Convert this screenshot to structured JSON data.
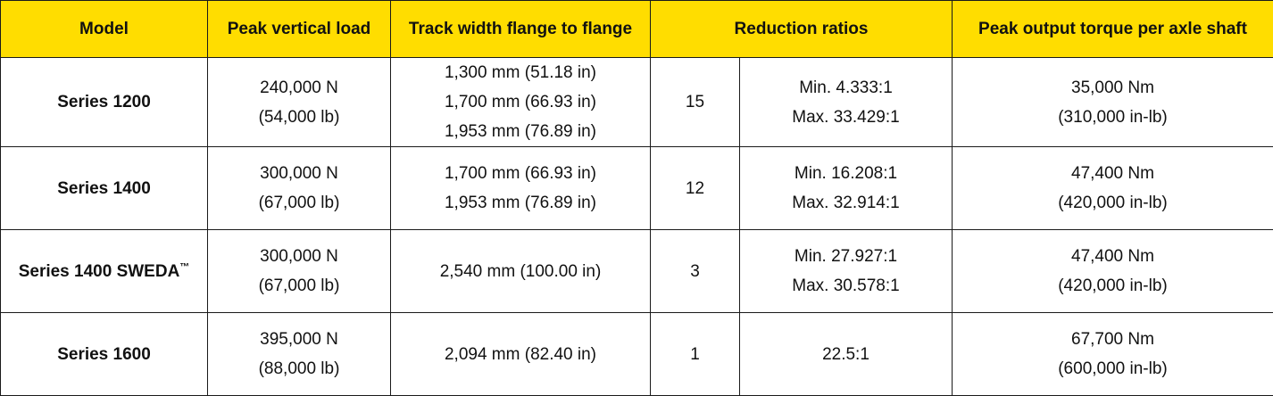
{
  "header_color": "#FFDD00",
  "headers": {
    "model": "Model",
    "load": "Peak vertical load",
    "track": "Track width flange to flange",
    "ratios": "Reduction ratios",
    "torque": "Peak output torque per axle shaft"
  },
  "rows": [
    {
      "model": "Series 1200",
      "load": [
        "240,000 N",
        "(54,000 lb)"
      ],
      "track": [
        "1,300 mm (51.18 in)",
        "1,700 mm (66.93 in)",
        "1,953 mm (76.89 in)"
      ],
      "ratio_count": "15",
      "ratio_range": [
        "Min. 4.333:1",
        "Max. 33.429:1"
      ],
      "torque": [
        "35,000 Nm",
        "(310,000 in-lb)"
      ]
    },
    {
      "model": "Series 1400",
      "load": [
        "300,000 N",
        "(67,000 lb)"
      ],
      "track": [
        "1,700 mm (66.93 in)",
        "1,953 mm (76.89 in)"
      ],
      "ratio_count": "12",
      "ratio_range": [
        "Min. 16.208:1",
        "Max. 32.914:1"
      ],
      "torque": [
        "47,400 Nm",
        "(420,000 in-lb)"
      ]
    },
    {
      "model": "Series 1400 SWEDA",
      "model_mark": "™",
      "load": [
        "300,000 N",
        "(67,000 lb)"
      ],
      "track": [
        "2,540 mm (100.00 in)"
      ],
      "ratio_count": "3",
      "ratio_range": [
        "Min. 27.927:1",
        "Max. 30.578:1"
      ],
      "torque": [
        "47,400 Nm",
        "(420,000 in-lb)"
      ]
    },
    {
      "model": "Series 1600",
      "load": [
        "395,000 N",
        "(88,000 lb)"
      ],
      "track": [
        "2,094 mm (82.40 in)"
      ],
      "ratio_count": "1",
      "ratio_range": [
        "22.5:1"
      ],
      "torque": [
        "67,700 Nm",
        "(600,000 in-lb)"
      ]
    }
  ]
}
